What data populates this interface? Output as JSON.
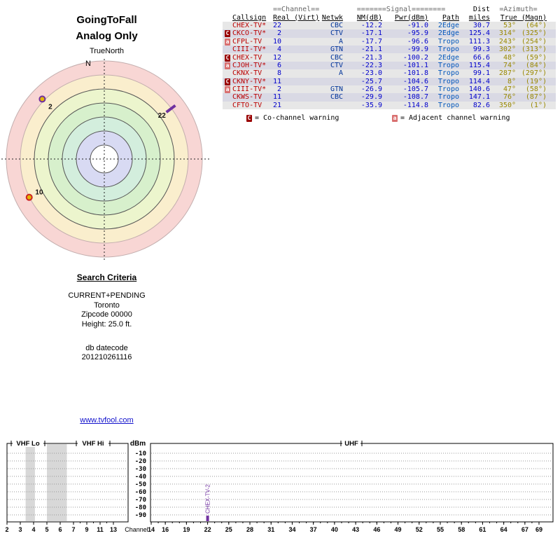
{
  "radar": {
    "title": "GoingToFall",
    "subtitle": "Analog Only",
    "north_ref": "TrueNorth",
    "north_label": "N",
    "ring_colors": [
      "#f8d6d4",
      "#faeecd",
      "#ecf5cd",
      "#d7f0cc",
      "#d3eedd",
      "#d8daf3",
      "#ffffff"
    ]
  },
  "table": {
    "header1": {
      "channel": "==Channel==",
      "signal": "=======Signal========",
      "dist": "Dist",
      "azimuth": "=Azimuth="
    },
    "header2": {
      "callsign": "Callsign",
      "real_virt": "Real (Virt)",
      "netwk": "Netwk",
      "nm": "NM(dB)",
      "pwr": "Pwr(dBm)",
      "path": "Path",
      "miles": "miles",
      "true_magn": "True (Magn)"
    },
    "rows": [
      {
        "warn": "",
        "callsign": "CHEX-TV*",
        "real": "22",
        "virt": "",
        "netwk": "CBC",
        "nm": "-12.2",
        "pwr": "-91.0",
        "path": "2Edge",
        "miles": "30.7",
        "true": "53°",
        "magn": "(64°)"
      },
      {
        "warn": "C",
        "callsign": "CKCO-TV*",
        "real": "2",
        "virt": "",
        "netwk": "CTV",
        "nm": "-17.1",
        "pwr": "-95.9",
        "path": "2Edge",
        "miles": "125.4",
        "true": "314°",
        "magn": "(325°)"
      },
      {
        "warn": "a",
        "callsign": "CFPL-TV",
        "real": "10",
        "virt": "",
        "netwk": "A",
        "nm": "-17.7",
        "pwr": "-96.6",
        "path": "Tropo",
        "miles": "111.3",
        "true": "243°",
        "magn": "(254°)"
      },
      {
        "warn": "",
        "callsign": "CIII-TV*",
        "real": "4",
        "virt": "",
        "netwk": "GTN",
        "nm": "-21.1",
        "pwr": "-99.9",
        "path": "Tropo",
        "miles": "99.3",
        "true": "302°",
        "magn": "(313°)"
      },
      {
        "warn": "C",
        "callsign": "CHEX-TV",
        "real": "12",
        "virt": "",
        "netwk": "CBC",
        "nm": "-21.3",
        "pwr": "-100.2",
        "path": "2Edge",
        "miles": "66.6",
        "true": "48°",
        "magn": "(59°)"
      },
      {
        "warn": "a",
        "callsign": "CJOH-TV*",
        "real": "6",
        "virt": "",
        "netwk": "CTV",
        "nm": "-22.3",
        "pwr": "-101.1",
        "path": "Tropo",
        "miles": "115.4",
        "true": "74°",
        "magn": "(84°)"
      },
      {
        "warn": "",
        "callsign": "CKNX-TV",
        "real": "8",
        "virt": "",
        "netwk": "A",
        "nm": "-23.0",
        "pwr": "-101.8",
        "path": "Tropo",
        "miles": "99.1",
        "true": "287°",
        "magn": "(297°)"
      },
      {
        "warn": "C",
        "callsign": "CKNY-TV*",
        "real": "11",
        "virt": "",
        "netwk": "",
        "nm": "-25.7",
        "pwr": "-104.6",
        "path": "Tropo",
        "miles": "114.4",
        "true": "8°",
        "magn": "(19°)"
      },
      {
        "warn": "a",
        "callsign": "CIII-TV*",
        "real": "2",
        "virt": "",
        "netwk": "GTN",
        "nm": "-26.9",
        "pwr": "-105.7",
        "path": "Tropo",
        "miles": "140.6",
        "true": "47°",
        "magn": "(58°)"
      },
      {
        "warn": "",
        "callsign": "CKWS-TV",
        "real": "11",
        "virt": "",
        "netwk": "CBC",
        "nm": "-29.9",
        "pwr": "-108.7",
        "path": "Tropo",
        "miles": "147.1",
        "true": "76°",
        "magn": "(87°)"
      },
      {
        "warn": "",
        "callsign": "CFTO-TV",
        "real": "21",
        "virt": "",
        "netwk": "",
        "nm": "-35.9",
        "pwr": "-114.8",
        "path": "Tropo",
        "miles": "82.6",
        "true": "350°",
        "magn": "(1°)"
      }
    ],
    "legend": {
      "co": "C",
      "co_text": "= Co-channel warning",
      "adj": "a",
      "adj_text": "= Adjacent channel warning"
    }
  },
  "search": {
    "heading": "Search Criteria",
    "lines": [
      "CURRENT+PENDING",
      "Toronto",
      "Zipcode 00000",
      "Height: 25.0 ft."
    ],
    "db_label": "db datecode",
    "db_value": "201210261116"
  },
  "link": {
    "text": "www.tvfool.com",
    "color": "#1111cc"
  },
  "chart_data": [
    {
      "type": "scatter",
      "subtype": "polar-azimuth",
      "title": "GoingToFall (Analog Only)",
      "points": [
        {
          "label": "2",
          "azimuth_deg": 314,
          "radius_frac": 0.88,
          "marker": "dot",
          "color": "#e3b505",
          "outline": "#7030a0",
          "band": "VHF"
        },
        {
          "label": "22",
          "azimuth_deg": 53,
          "radius_frac": 0.85,
          "marker": "dash",
          "color": "#7030a0",
          "band": "UHF"
        },
        {
          "label": "10",
          "azimuth_deg": 243,
          "radius_frac": 0.86,
          "marker": "dot",
          "color": "#e3b505",
          "outline": "#cc2222",
          "band": "VHF"
        }
      ]
    },
    {
      "type": "scatter",
      "subtype": "spectrum",
      "ylabel": "dBm",
      "xlabel": "Channel",
      "bands": [
        "VHF Lo",
        "VHF Hi",
        "UHF"
      ],
      "yticks": [
        -10,
        -20,
        -30,
        -40,
        -50,
        -60,
        -70,
        -80,
        -90
      ],
      "x_vhf_ticks": [
        "2",
        "3",
        "4",
        "5",
        "6",
        "7",
        "9",
        "11",
        "13"
      ],
      "x_uhf_ticks": [
        "14",
        "16",
        "19",
        "22",
        "25",
        "28",
        "31",
        "34",
        "37",
        "40",
        "43",
        "46",
        "49",
        "52",
        "55",
        "58",
        "61",
        "64",
        "67",
        "69"
      ],
      "shaded_channel_ranges": [
        [
          3.4,
          4.1
        ],
        [
          5.0,
          6.5
        ]
      ],
      "points": [
        {
          "label": "CHEX-TV-2",
          "channel": 22,
          "dbm": -91,
          "color": "#7030a0"
        }
      ]
    }
  ]
}
